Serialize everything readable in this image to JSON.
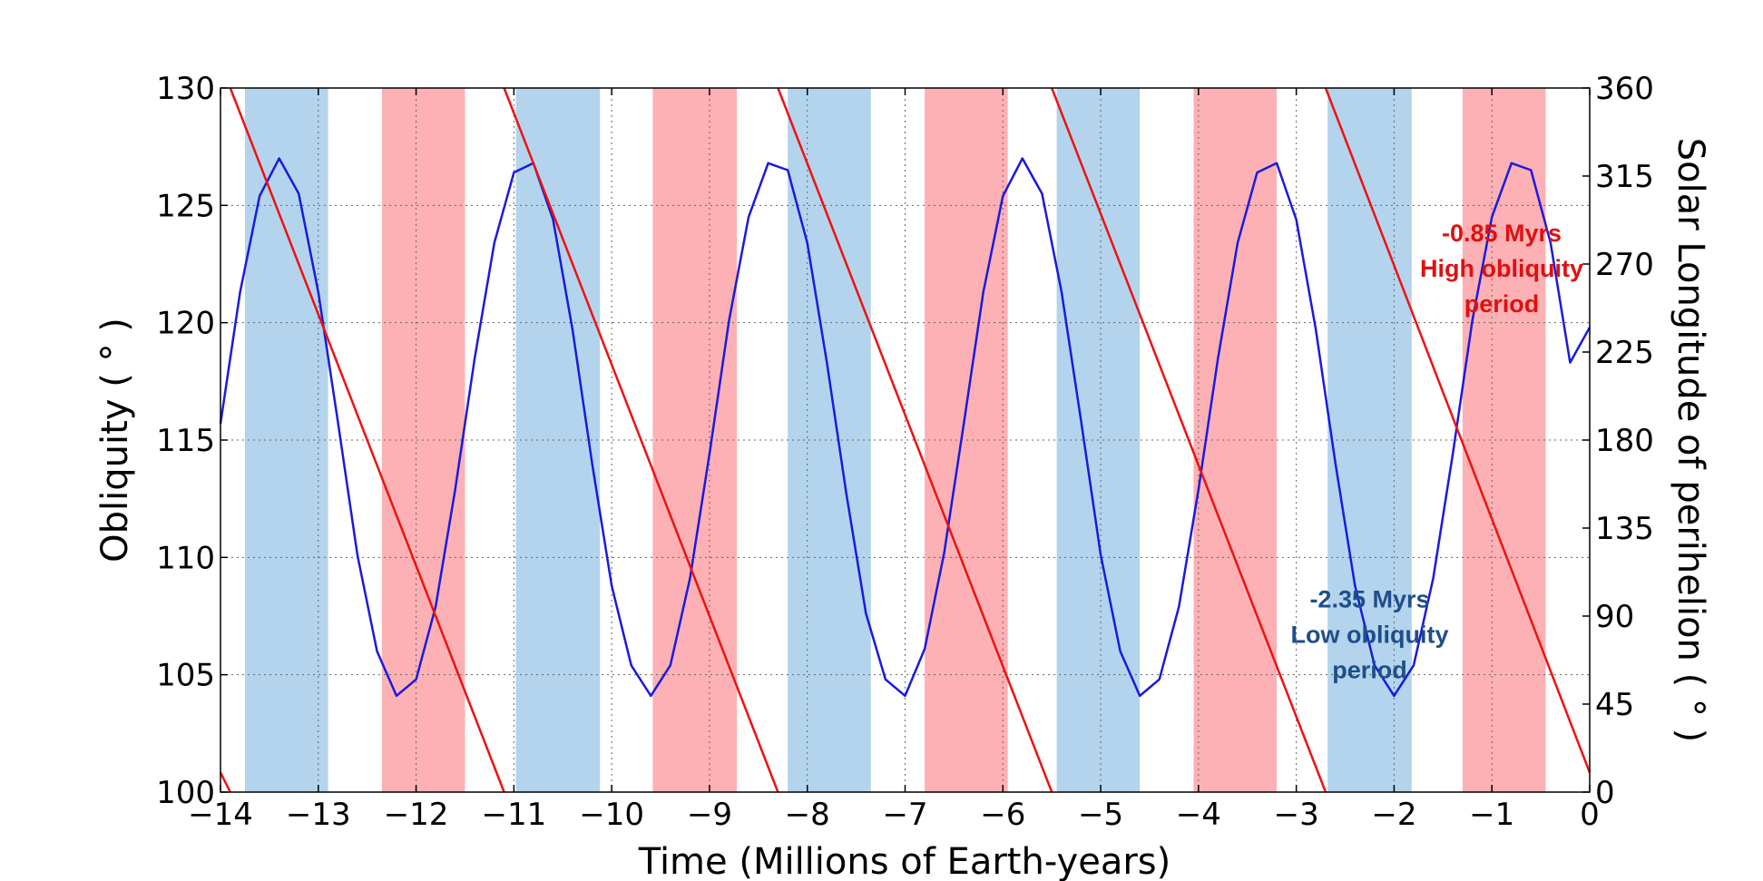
{
  "chart_data": {
    "type": "line",
    "xlabel": "Time (Millions of Earth-years)",
    "ylabel": "Obliquity ($^\\circ$)",
    "ylabel_display": "Obliquity ( ° )",
    "y2label_display": "Solar Longitude of perihelion ( ° )",
    "xlim": [
      -14,
      0
    ],
    "ylim": [
      100,
      130
    ],
    "y2lim": [
      0,
      360
    ],
    "grid": true,
    "x_ticks": [
      -14,
      -13,
      -12,
      -11,
      -10,
      -9,
      -8,
      -7,
      -6,
      -5,
      -4,
      -3,
      -2,
      -1,
      0
    ],
    "x_tick_labels": [
      "−14",
      "−13",
      "−12",
      "−11",
      "−10",
      "−9",
      "−8",
      "−7",
      "−6",
      "−5",
      "−4",
      "−3",
      "−2",
      "−1",
      "0"
    ],
    "y_ticks": [
      100,
      105,
      110,
      115,
      120,
      125,
      130
    ],
    "y_tick_labels": [
      "100",
      "105",
      "110",
      "115",
      "120",
      "125",
      "130"
    ],
    "y2_ticks": [
      0,
      45,
      90,
      135,
      180,
      225,
      270,
      315,
      360
    ],
    "y2_tick_labels": [
      "0",
      "45",
      "90",
      "135",
      "180",
      "225",
      "270",
      "315",
      "360"
    ],
    "series": [
      {
        "name": "Obliquity",
        "axis": "left",
        "color": "#1a1adf",
        "x": [
          -14.0,
          -13.8,
          -13.6,
          -13.4,
          -13.2,
          -13.0,
          -12.8,
          -12.6,
          -12.4,
          -12.2,
          -12.0,
          -11.8,
          -11.6,
          -11.4,
          -11.2,
          -11.0,
          -10.8,
          -10.6,
          -10.4,
          -10.2,
          -10.0,
          -9.8,
          -9.6,
          -9.4,
          -9.2,
          -9.0,
          -8.8,
          -8.6,
          -8.4,
          -8.2,
          -8.0,
          -7.8,
          -7.6,
          -7.4,
          -7.2,
          -7.0,
          -6.8,
          -6.6,
          -6.4,
          -6.2,
          -6.0,
          -5.8,
          -5.6,
          -5.4,
          -5.2,
          -5.0,
          -4.8,
          -4.6,
          -4.4,
          -4.2,
          -4.0,
          -3.8,
          -3.6,
          -3.4,
          -3.2,
          -3.0,
          -2.8,
          -2.6,
          -2.4,
          -2.2,
          -2.0,
          -1.8,
          -1.6,
          -1.4,
          -1.2,
          -1.0,
          -0.8,
          -0.6,
          -0.4,
          -0.2,
          0.0
        ],
        "y": [
          115.7,
          121.3,
          125.4,
          127.0,
          125.5,
          121.3,
          115.8,
          110.1,
          106.0,
          104.1,
          104.8,
          107.9,
          112.9,
          118.5,
          123.4,
          126.4,
          126.8,
          124.4,
          119.7,
          114.0,
          108.8,
          105.4,
          104.1,
          105.4,
          109.1,
          114.4,
          120.1,
          124.5,
          126.8,
          126.5,
          123.4,
          118.3,
          112.7,
          107.6,
          104.8,
          104.1,
          106.1,
          110.2,
          115.7,
          121.3,
          125.4,
          127.0,
          125.5,
          121.3,
          115.8,
          110.1,
          106.0,
          104.1,
          104.8,
          107.9,
          112.9,
          118.5,
          123.4,
          126.4,
          126.8,
          124.4,
          119.7,
          114.0,
          108.8,
          105.4,
          104.1,
          105.4,
          109.1,
          114.4,
          120.1,
          124.5,
          126.8,
          126.5,
          123.4,
          118.3,
          119.8
        ]
      },
      {
        "name": "Solar Longitude of perihelion",
        "axis": "right",
        "color": "#ee1111",
        "segments": [
          {
            "x": [
              -14.0,
              -13.9
            ],
            "y": [
              10,
              0
            ]
          },
          {
            "x": [
              -13.9,
              -11.1
            ],
            "y": [
              360,
              0
            ]
          },
          {
            "x": [
              -11.1,
              -8.3
            ],
            "y": [
              360,
              0
            ]
          },
          {
            "x": [
              -8.3,
              -5.5
            ],
            "y": [
              360,
              0
            ]
          },
          {
            "x": [
              -5.5,
              -2.7
            ],
            "y": [
              360,
              0
            ]
          },
          {
            "x": [
              -2.7,
              0.0
            ],
            "y": [
              360,
              10
            ]
          }
        ]
      }
    ],
    "shaded_spans": [
      {
        "x0": -13.75,
        "x1": -12.9,
        "color": "#b3d4ec",
        "kind": "low"
      },
      {
        "x0": -12.35,
        "x1": -11.5,
        "color": "#fdb1b4",
        "kind": "high"
      },
      {
        "x0": -10.98,
        "x1": -10.12,
        "color": "#b3d4ec",
        "kind": "low"
      },
      {
        "x0": -9.58,
        "x1": -8.72,
        "color": "#fdb1b4",
        "kind": "high"
      },
      {
        "x0": -8.2,
        "x1": -7.35,
        "color": "#b3d4ec",
        "kind": "low"
      },
      {
        "x0": -6.8,
        "x1": -5.95,
        "color": "#fdb1b4",
        "kind": "high"
      },
      {
        "x0": -5.45,
        "x1": -4.6,
        "color": "#b3d4ec",
        "kind": "low"
      },
      {
        "x0": -4.05,
        "x1": -3.2,
        "color": "#fdb1b4",
        "kind": "high"
      },
      {
        "x0": -2.68,
        "x1": -1.82,
        "color": "#b3d4ec",
        "kind": "low"
      },
      {
        "x0": -1.3,
        "x1": -0.45,
        "color": "#fdb1b4",
        "kind": "high"
      }
    ],
    "annotations": [
      {
        "lines": [
          "-0.85 Myrs",
          "High obliquity",
          "period"
        ],
        "x": -0.9,
        "y": 122.3,
        "color": "#e01010"
      },
      {
        "lines": [
          "-2.35 Myrs",
          "Low obliquity",
          "period"
        ],
        "x": -2.25,
        "y": 106.7,
        "color": "#1f4e8c"
      }
    ]
  }
}
